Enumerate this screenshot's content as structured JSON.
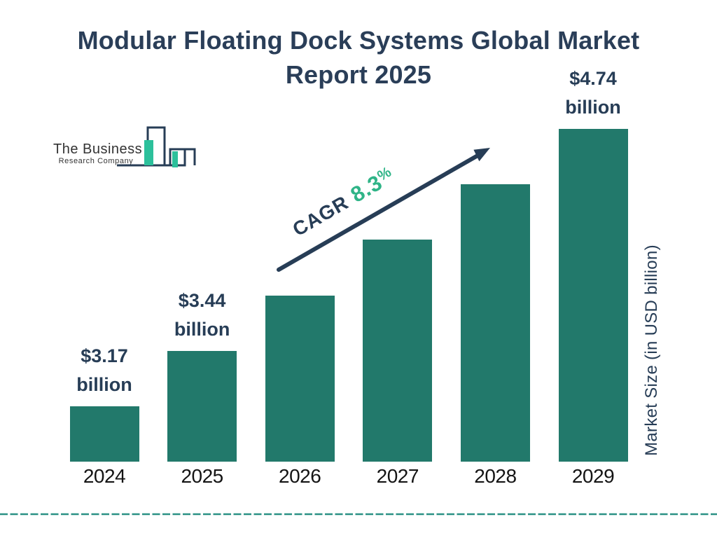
{
  "page": {
    "title_line1": "Modular Floating Dock Systems Global Market",
    "title_line2": "Report 2025"
  },
  "logo": {
    "name_line1": "The Business",
    "name_line2": "Research Company"
  },
  "chart_data": {
    "type": "bar",
    "title": "Modular Floating Dock Systems Global Market Report 2025",
    "categories": [
      "2024",
      "2025",
      "2026",
      "2027",
      "2028",
      "2029"
    ],
    "values": [
      3.17,
      3.44,
      3.73,
      4.04,
      4.37,
      4.74
    ],
    "values_labeled_on_chart": [
      true,
      true,
      false,
      false,
      false,
      true
    ],
    "value_labels": [
      [
        "$3.17",
        "billion"
      ],
      [
        "$3.44",
        "billion"
      ],
      null,
      null,
      null,
      [
        "$4.74",
        "billion"
      ]
    ],
    "unit": "USD billion",
    "xlabel": "",
    "ylabel": "Market Size (in USD billion)",
    "legend": "none",
    "grid": "off",
    "annotation": {
      "prefix": "CAGR",
      "value": "8.3",
      "suffix": "%"
    }
  },
  "colors": {
    "bar": "#22796b",
    "navy_text": "#273d56",
    "title_navy": "#2a3e58",
    "cagr_green": "#2fb487",
    "logo_teal": "#2cc09b",
    "dashed_line": "#2b9185",
    "year_label": "#141414"
  }
}
